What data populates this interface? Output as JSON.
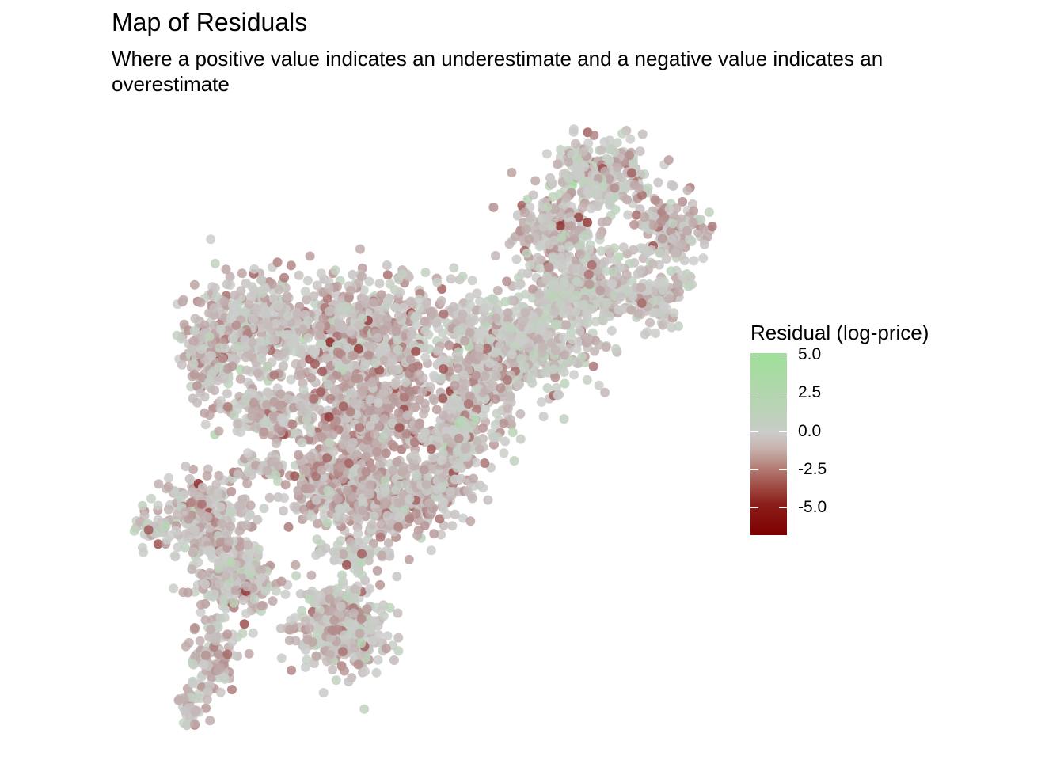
{
  "title": "Map of Residuals",
  "subtitle": "Where a positive value indicates an underestimate and a negative value indicates an overestimate",
  "legend": {
    "title": "Residual (log-price)",
    "scale_min": -6.8,
    "scale_max": 5.1,
    "ticks": [
      {
        "value": 5.0,
        "label": "5.0"
      },
      {
        "value": 2.5,
        "label": "2.5"
      },
      {
        "value": 0.0,
        "label": "0.0"
      },
      {
        "value": -2.5,
        "label": "-2.5"
      },
      {
        "value": -5.0,
        "label": "-5.0"
      }
    ],
    "colors": {
      "high": "#98e494",
      "mid": "#cccccc",
      "low": "#7e0000"
    }
  },
  "chart_data": {
    "type": "scatter",
    "title": "Map of Residuals",
    "subtitle": "Where a positive value indicates an underestimate and a negative value indicates an overestimate",
    "color_variable": "Residual (log-price)",
    "color_range": [
      -6.8,
      5.1
    ],
    "grid": false,
    "legend_position": "right"
  }
}
